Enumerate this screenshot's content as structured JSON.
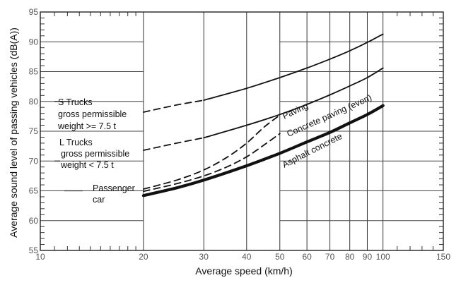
{
  "chart_data": {
    "type": "line",
    "title": "",
    "xlabel": "Average speed (km/h)",
    "ylabel": "Average sound level of passing vehicles (dB(A))",
    "x_scale": "log",
    "xlim": [
      10,
      150
    ],
    "ylim": [
      55,
      95
    ],
    "x_ticks": [
      10,
      20,
      30,
      40,
      50,
      60,
      70,
      80,
      90,
      100,
      150
    ],
    "y_ticks": [
      55,
      60,
      65,
      70,
      75,
      80,
      85,
      90,
      95
    ],
    "grid": true,
    "series": [
      {
        "name": "S Trucks gross permissible weight >= 7.5 t",
        "style": "dashed",
        "x": [
          20,
          25,
          30
        ],
        "y": [
          78.2,
          79.4,
          80.2
        ]
      },
      {
        "name": "S Trucks gross permissible weight >= 7.5 t",
        "style": "solid",
        "x": [
          30,
          40,
          50,
          60,
          70,
          80,
          90,
          100
        ],
        "y": [
          80.2,
          82.2,
          84.0,
          85.6,
          87.1,
          88.5,
          89.9,
          91.3
        ]
      },
      {
        "name": "L Trucks gross permissible weight < 7.5 t",
        "style": "dashed",
        "x": [
          20,
          25,
          30
        ],
        "y": [
          71.8,
          73.0,
          73.9
        ]
      },
      {
        "name": "L Trucks gross permissible weight < 7.5 t",
        "style": "solid",
        "x": [
          30,
          40,
          50,
          60,
          70,
          80,
          90,
          100
        ],
        "y": [
          73.9,
          76.0,
          77.8,
          79.5,
          81.1,
          82.6,
          84.0,
          85.6
        ]
      },
      {
        "name": "Paving",
        "style": "dashed",
        "x": [
          20,
          25,
          30,
          35,
          40,
          45,
          50
        ],
        "y": [
          65.3,
          66.8,
          68.5,
          70.6,
          73.0,
          75.7,
          77.7
        ]
      },
      {
        "name": "Concrete paving (even)",
        "style": "dashed",
        "x": [
          20,
          25,
          30,
          35,
          40,
          45,
          50
        ],
        "y": [
          64.9,
          66.2,
          67.5,
          69.0,
          70.7,
          72.7,
          74.6
        ]
      },
      {
        "name": "Asphalt concrete",
        "style": "bold",
        "x": [
          20,
          25,
          30,
          40,
          50,
          60,
          70,
          80,
          90,
          100
        ],
        "y": [
          64.2,
          65.5,
          66.8,
          69.2,
          71.3,
          73.2,
          74.8,
          76.4,
          77.8,
          79.3
        ]
      }
    ]
  },
  "annotations": {
    "s_trucks": [
      "S Trucks",
      "gross permissible",
      "weight >= 7.5 t"
    ],
    "l_trucks": [
      "L  Trucks",
      "gross permissible",
      "weight <  7.5 t"
    ],
    "passenger": [
      "Passenger",
      "car"
    ],
    "paving": "Paving",
    "concrete": "Concrete paving (even)",
    "asphalt": "Asphalt concrete"
  }
}
